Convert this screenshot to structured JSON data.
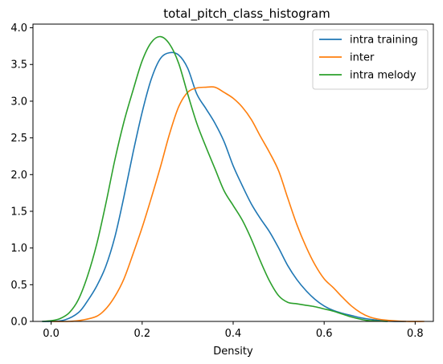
{
  "chart_data": {
    "type": "line",
    "title": "total_pitch_class_histogram",
    "xlabel": "Density",
    "ylabel": "",
    "xlim": [
      -0.04,
      0.84
    ],
    "ylim": [
      0,
      4.05
    ],
    "x_ticks": [
      0.0,
      0.2,
      0.4,
      0.6,
      0.8
    ],
    "x_tick_labels": [
      "0.0",
      "0.2",
      "0.4",
      "0.6",
      "0.8"
    ],
    "y_ticks": [
      0.0,
      0.5,
      1.0,
      1.5,
      2.0,
      2.5,
      3.0,
      3.5,
      4.0
    ],
    "y_tick_labels": [
      "0.0",
      "0.5",
      "1.0",
      "1.5",
      "2.0",
      "2.5",
      "3.0",
      "3.5",
      "4.0"
    ],
    "grid": false,
    "legend_position": "top-right",
    "series": [
      {
        "name": "intra training",
        "color": "#1f77b4",
        "points": [
          [
            -0.02,
            0
          ],
          [
            0.0,
            0.0
          ],
          [
            0.03,
            0.02
          ],
          [
            0.06,
            0.12
          ],
          [
            0.08,
            0.28
          ],
          [
            0.1,
            0.48
          ],
          [
            0.12,
            0.75
          ],
          [
            0.14,
            1.15
          ],
          [
            0.16,
            1.7
          ],
          [
            0.18,
            2.3
          ],
          [
            0.2,
            2.85
          ],
          [
            0.22,
            3.3
          ],
          [
            0.24,
            3.58
          ],
          [
            0.26,
            3.66
          ],
          [
            0.28,
            3.63
          ],
          [
            0.3,
            3.45
          ],
          [
            0.32,
            3.1
          ],
          [
            0.34,
            2.9
          ],
          [
            0.36,
            2.7
          ],
          [
            0.38,
            2.45
          ],
          [
            0.4,
            2.12
          ],
          [
            0.42,
            1.85
          ],
          [
            0.44,
            1.6
          ],
          [
            0.46,
            1.4
          ],
          [
            0.48,
            1.22
          ],
          [
            0.5,
            1.0
          ],
          [
            0.52,
            0.76
          ],
          [
            0.54,
            0.57
          ],
          [
            0.56,
            0.42
          ],
          [
            0.58,
            0.3
          ],
          [
            0.6,
            0.21
          ],
          [
            0.62,
            0.15
          ],
          [
            0.64,
            0.11
          ],
          [
            0.66,
            0.08
          ],
          [
            0.68,
            0.05
          ],
          [
            0.7,
            0.03
          ],
          [
            0.72,
            0.015
          ],
          [
            0.75,
            0.0
          ],
          [
            0.78,
            0.0
          ]
        ]
      },
      {
        "name": "inter",
        "color": "#ff7f0e",
        "points": [
          [
            0.0,
            0
          ],
          [
            0.04,
            0.0
          ],
          [
            0.07,
            0.02
          ],
          [
            0.1,
            0.07
          ],
          [
            0.12,
            0.17
          ],
          [
            0.14,
            0.34
          ],
          [
            0.16,
            0.58
          ],
          [
            0.18,
            0.92
          ],
          [
            0.2,
            1.28
          ],
          [
            0.22,
            1.68
          ],
          [
            0.24,
            2.1
          ],
          [
            0.26,
            2.55
          ],
          [
            0.28,
            2.92
          ],
          [
            0.3,
            3.12
          ],
          [
            0.32,
            3.18
          ],
          [
            0.34,
            3.19
          ],
          [
            0.36,
            3.19
          ],
          [
            0.38,
            3.12
          ],
          [
            0.4,
            3.04
          ],
          [
            0.42,
            2.92
          ],
          [
            0.44,
            2.75
          ],
          [
            0.46,
            2.52
          ],
          [
            0.48,
            2.3
          ],
          [
            0.5,
            2.05
          ],
          [
            0.52,
            1.68
          ],
          [
            0.54,
            1.32
          ],
          [
            0.56,
            1.02
          ],
          [
            0.58,
            0.77
          ],
          [
            0.6,
            0.58
          ],
          [
            0.62,
            0.46
          ],
          [
            0.64,
            0.33
          ],
          [
            0.66,
            0.21
          ],
          [
            0.68,
            0.12
          ],
          [
            0.7,
            0.06
          ],
          [
            0.72,
            0.03
          ],
          [
            0.75,
            0.01
          ],
          [
            0.78,
            0.0
          ],
          [
            0.82,
            0.0
          ]
        ]
      },
      {
        "name": "intra melody",
        "color": "#2ca02c",
        "points": [
          [
            -0.02,
            0
          ],
          [
            0.0,
            0.01
          ],
          [
            0.02,
            0.04
          ],
          [
            0.04,
            0.12
          ],
          [
            0.06,
            0.3
          ],
          [
            0.08,
            0.62
          ],
          [
            0.1,
            1.05
          ],
          [
            0.12,
            1.6
          ],
          [
            0.14,
            2.2
          ],
          [
            0.16,
            2.72
          ],
          [
            0.18,
            3.15
          ],
          [
            0.2,
            3.55
          ],
          [
            0.22,
            3.8
          ],
          [
            0.24,
            3.88
          ],
          [
            0.26,
            3.78
          ],
          [
            0.28,
            3.52
          ],
          [
            0.3,
            3.1
          ],
          [
            0.32,
            2.7
          ],
          [
            0.34,
            2.38
          ],
          [
            0.36,
            2.08
          ],
          [
            0.38,
            1.78
          ],
          [
            0.4,
            1.58
          ],
          [
            0.42,
            1.38
          ],
          [
            0.44,
            1.12
          ],
          [
            0.46,
            0.82
          ],
          [
            0.48,
            0.55
          ],
          [
            0.5,
            0.35
          ],
          [
            0.52,
            0.26
          ],
          [
            0.54,
            0.24
          ],
          [
            0.56,
            0.22
          ],
          [
            0.58,
            0.2
          ],
          [
            0.6,
            0.17
          ],
          [
            0.62,
            0.14
          ],
          [
            0.64,
            0.1
          ],
          [
            0.66,
            0.06
          ],
          [
            0.68,
            0.03
          ],
          [
            0.7,
            0.01
          ],
          [
            0.74,
            0.0
          ]
        ]
      }
    ]
  }
}
